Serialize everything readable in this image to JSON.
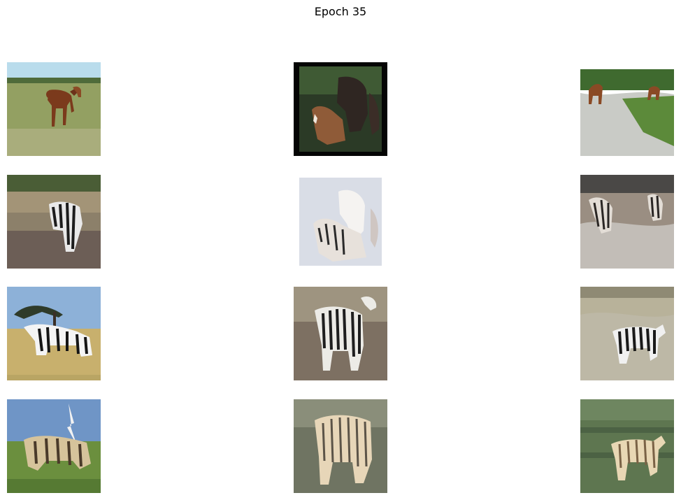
{
  "figure": {
    "title": "Epoch 35"
  },
  "grid": {
    "rows": 4,
    "cols": 3,
    "tiles": [
      {
        "row": 1,
        "col": 1,
        "subject": "horses",
        "style": "photo",
        "palette": {
          "sky": "#a9d3e6",
          "ground": "#8f9a5c",
          "animal": "#7a3b1e"
        }
      },
      {
        "row": 1,
        "col": 2,
        "subject": "horses",
        "style": "photo-black-frame",
        "palette": {
          "sky": "#2c4a2a",
          "ground": "#1f2f1c",
          "animal": "#8a5a3a"
        }
      },
      {
        "row": 1,
        "col": 3,
        "subject": "horses",
        "style": "photo",
        "palette": {
          "sky": "#ffffff",
          "ground": "#c9ccc4",
          "animal": "#8a4b26"
        }
      },
      {
        "row": 2,
        "col": 1,
        "subject": "zebra",
        "style": "translated",
        "palette": {
          "sky": "#5e6a4a",
          "ground": "#8d8068",
          "animal": "#e8e8e8"
        }
      },
      {
        "row": 2,
        "col": 2,
        "subject": "zebras",
        "style": "translated-pale",
        "palette": {
          "sky": "#dfe3ea",
          "ground": "#c9c6cc",
          "animal": "#f2f0ee"
        }
      },
      {
        "row": 2,
        "col": 3,
        "subject": "zebras",
        "style": "translated",
        "palette": {
          "sky": "#514f4c",
          "ground": "#9a8e82",
          "animal": "#d7d2cc"
        }
      },
      {
        "row": 3,
        "col": 1,
        "subject": "zebras",
        "style": "photo",
        "palette": {
          "sky": "#8db1d8",
          "ground": "#c8b06d",
          "animal": "#f4f4f4"
        }
      },
      {
        "row": 3,
        "col": 2,
        "subject": "zebras",
        "style": "photo",
        "palette": {
          "sky": "#9e9480",
          "ground": "#7d7062",
          "animal": "#e9e6e0"
        }
      },
      {
        "row": 3,
        "col": 3,
        "subject": "zebra",
        "style": "photo",
        "palette": {
          "sky": "#b7b7a6",
          "ground": "#b8b29a",
          "animal": "#f0f0f0"
        }
      },
      {
        "row": 4,
        "col": 1,
        "subject": "zebras",
        "style": "translated",
        "palette": {
          "sky": "#6f95c6",
          "ground": "#6b8f3e",
          "animal": "#d8c49a"
        }
      },
      {
        "row": 4,
        "col": 2,
        "subject": "zebras",
        "style": "translated",
        "palette": {
          "sky": "#8a8e7a",
          "ground": "#6f7462",
          "animal": "#e7d6b8"
        }
      },
      {
        "row": 4,
        "col": 3,
        "subject": "zebra",
        "style": "translated",
        "palette": {
          "sky": "#6e8660",
          "ground": "#5e7650",
          "animal": "#e8d7b4"
        }
      }
    ]
  }
}
